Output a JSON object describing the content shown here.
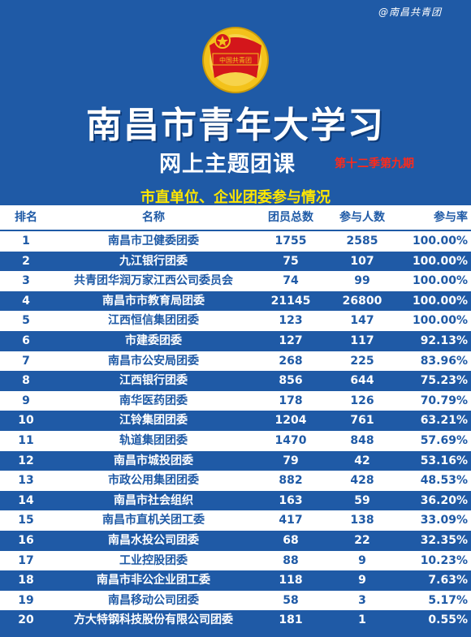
{
  "watermark": "@南昌共青团",
  "emblem_text": "中国共青团",
  "title": "南昌市青年大学习",
  "subtitle": "网上主题团课",
  "season": "第十二季第九期",
  "section_title": "市直单位、企业团委参与情况",
  "colors": {
    "background": "#1f5aa6",
    "accent_yellow": "#ffe600",
    "accent_red": "#ff2a1a"
  },
  "table": {
    "headers": {
      "rank": "排名",
      "name": "名称",
      "total": "团员总数",
      "participants": "参与人数",
      "rate": "参与率"
    },
    "rows": [
      {
        "rank": "1",
        "name": "南昌市卫健委团委",
        "total": "1755",
        "participants": "2585",
        "rate": "100.00%"
      },
      {
        "rank": "2",
        "name": "九江银行团委",
        "total": "75",
        "participants": "107",
        "rate": "100.00%"
      },
      {
        "rank": "3",
        "name": "共青团华润万家江西公司委员会",
        "total": "74",
        "participants": "99",
        "rate": "100.00%"
      },
      {
        "rank": "4",
        "name": "南昌市市教育局团委",
        "total": "21145",
        "participants": "26800",
        "rate": "100.00%"
      },
      {
        "rank": "5",
        "name": "江西恒信集团团委",
        "total": "123",
        "participants": "147",
        "rate": "100.00%"
      },
      {
        "rank": "6",
        "name": "市建委团委",
        "total": "127",
        "participants": "117",
        "rate": "92.13%"
      },
      {
        "rank": "7",
        "name": "南昌市公安局团委",
        "total": "268",
        "participants": "225",
        "rate": "83.96%"
      },
      {
        "rank": "8",
        "name": "江西银行团委",
        "total": "856",
        "participants": "644",
        "rate": "75.23%"
      },
      {
        "rank": "9",
        "name": "南华医药团委",
        "total": "178",
        "participants": "126",
        "rate": "70.79%"
      },
      {
        "rank": "10",
        "name": "江铃集团团委",
        "total": "1204",
        "participants": "761",
        "rate": "63.21%"
      },
      {
        "rank": "11",
        "name": "轨道集团团委",
        "total": "1470",
        "participants": "848",
        "rate": "57.69%"
      },
      {
        "rank": "12",
        "name": "南昌市城投团委",
        "total": "79",
        "participants": "42",
        "rate": "53.16%"
      },
      {
        "rank": "13",
        "name": "市政公用集团团委",
        "total": "882",
        "participants": "428",
        "rate": "48.53%"
      },
      {
        "rank": "14",
        "name": "南昌市社会组织",
        "total": "163",
        "participants": "59",
        "rate": "36.20%"
      },
      {
        "rank": "15",
        "name": "南昌市直机关团工委",
        "total": "417",
        "participants": "138",
        "rate": "33.09%"
      },
      {
        "rank": "16",
        "name": "南昌水投公司团委",
        "total": "68",
        "participants": "22",
        "rate": "32.35%"
      },
      {
        "rank": "17",
        "name": "工业控股团委",
        "total": "88",
        "participants": "9",
        "rate": "10.23%"
      },
      {
        "rank": "18",
        "name": "南昌市非公企业团工委",
        "total": "118",
        "participants": "9",
        "rate": "7.63%"
      },
      {
        "rank": "19",
        "name": "南昌移动公司团委",
        "total": "58",
        "participants": "3",
        "rate": "5.17%"
      },
      {
        "rank": "20",
        "name": "方大特钢科技股份有限公司团委",
        "total": "181",
        "participants": "1",
        "rate": "0.55%"
      }
    ]
  }
}
